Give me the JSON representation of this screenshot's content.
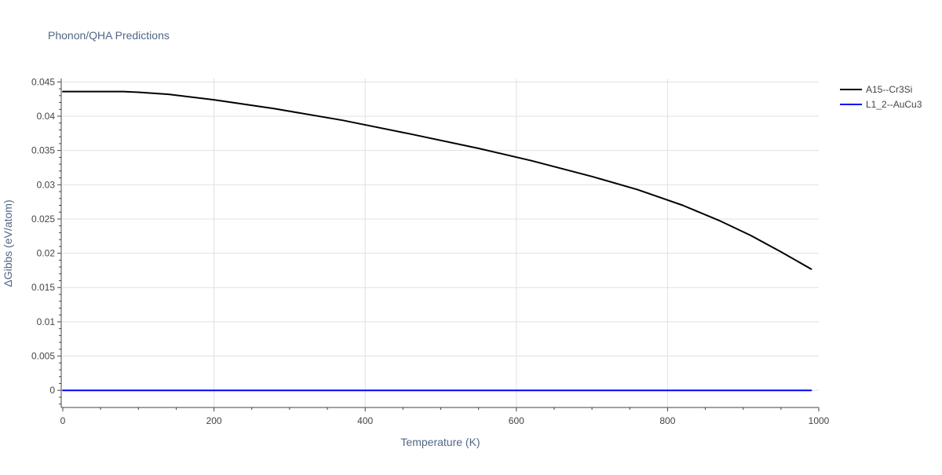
{
  "chart_data": {
    "type": "line",
    "title": "Phonon/QHA Predictions",
    "xlabel": "Temperature (K)",
    "ylabel": "ΔGibbs (eV/atom)",
    "xlim": [
      0,
      1000
    ],
    "ylim": [
      -0.0025,
      0.0455
    ],
    "x_ticks": [
      0,
      200,
      400,
      600,
      800,
      1000
    ],
    "x_tick_labels": [
      "0",
      "200",
      "400",
      "600",
      "800",
      "1000"
    ],
    "y_ticks": [
      0,
      0.005,
      0.01,
      0.015,
      0.02,
      0.025,
      0.03,
      0.035,
      0.04,
      0.045
    ],
    "y_tick_labels": [
      "0",
      "0.005",
      "0.01",
      "0.015",
      "0.02",
      "0.025",
      "0.03",
      "0.035",
      "0.04",
      "0.045"
    ],
    "grid": true,
    "legend_position": "top-right",
    "series": [
      {
        "name": "A15--Cr3Si",
        "color": "#000000",
        "x": [
          0,
          40,
          80,
          100,
          140,
          200,
          280,
          370,
          460,
          550,
          620,
          700,
          760,
          820,
          870,
          910,
          950,
          990
        ],
        "y": [
          0.0436,
          0.0436,
          0.0436,
          0.0435,
          0.0432,
          0.0424,
          0.0411,
          0.0394,
          0.0374,
          0.0353,
          0.0335,
          0.0312,
          0.0293,
          0.027,
          0.0247,
          0.0226,
          0.0202,
          0.0177
        ]
      },
      {
        "name": "L1_2--AuCu3",
        "color": "#0000ff",
        "x": [
          0,
          990
        ],
        "y": [
          0,
          0
        ]
      }
    ]
  }
}
